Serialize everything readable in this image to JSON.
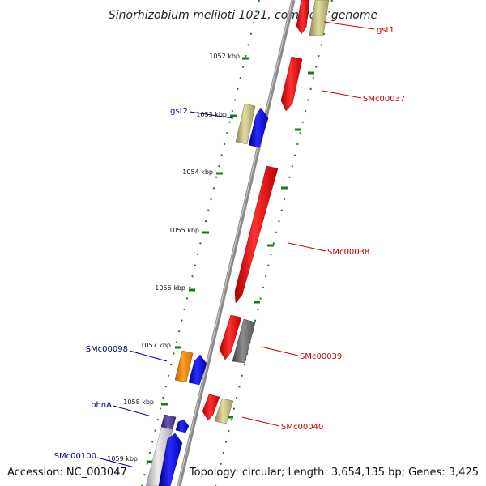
{
  "title": "Sinorhizobium meliloti 1021, complete genome",
  "footer": {
    "accession": "Accession: NC_003047",
    "topology": "Topology: circular; Length: 3,654,135 bp; Genes: 3,425"
  },
  "colors": {
    "forward_label": "#cc0000",
    "reverse_label": "#00008b",
    "tick": "#1a7a1a",
    "backbone": "#8a8a8a"
  },
  "ticks": [
    "1052 kbp",
    "1053 kbp",
    "1054 kbp",
    "1055 kbp",
    "1056 kbp",
    "1057 kbp",
    "1058 kbp",
    "1059 kbp"
  ],
  "genes": [
    {
      "label": "gst1",
      "strand": "forward",
      "color": "#ff0000"
    },
    {
      "label": "SMc00037",
      "strand": "forward",
      "color": "#ff0000"
    },
    {
      "label": "gst2",
      "strand": "reverse",
      "color": "#0000ff"
    },
    {
      "label": "SMc00038",
      "strand": "forward",
      "color": "#ff0000"
    },
    {
      "label": "SMc00039",
      "strand": "forward",
      "color": "#ff0000"
    },
    {
      "label": "SMc00098",
      "strand": "reverse",
      "color": "#0000ff"
    },
    {
      "label": "SMc00040",
      "strand": "forward",
      "color": "#ff0000"
    },
    {
      "label": "phnA",
      "strand": "reverse",
      "color": "#0000ff"
    },
    {
      "label": "SMc00100",
      "strand": "reverse",
      "color": "#0000ff"
    }
  ]
}
